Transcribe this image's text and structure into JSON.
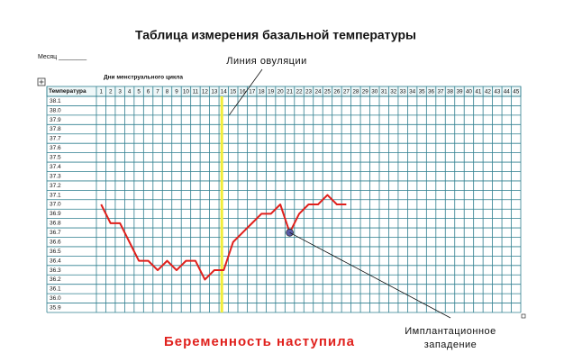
{
  "chart_data": {
    "type": "line",
    "title": "Таблица измерения базальной температуры",
    "month_label": "Месяц ________",
    "x_label": "Дни менструального цикла",
    "header_label": "Температура",
    "categories": [
      1,
      2,
      3,
      4,
      5,
      6,
      7,
      8,
      9,
      10,
      11,
      12,
      13,
      14,
      15,
      16,
      17,
      18,
      19,
      20,
      21,
      22,
      23,
      24,
      25,
      26,
      27,
      28,
      29,
      30,
      31,
      32,
      33,
      34,
      35,
      36,
      37,
      38,
      39,
      40,
      41,
      42,
      43,
      44,
      45
    ],
    "series": [
      {
        "color": "#e0201c",
        "values": [
          37.0,
          36.8,
          36.8,
          36.6,
          36.4,
          36.4,
          36.3,
          36.4,
          36.3,
          36.4,
          36.4,
          36.2,
          36.3,
          36.3,
          36.6,
          36.7,
          36.8,
          36.9,
          36.9,
          37.0,
          36.7,
          36.9,
          37.0,
          37.0,
          37.1,
          37.0,
          37.0,
          null,
          null,
          null,
          null,
          null,
          null,
          null,
          null,
          null,
          null,
          null,
          null,
          null,
          null,
          null,
          null,
          null,
          null
        ]
      }
    ],
    "ylim": [
      35.85,
      38.15
    ],
    "yticks": [
      38.1,
      {
        "value": 38.0,
        "label": "38.0"
      },
      37.9,
      37.8,
      37.7,
      37.6,
      37.5,
      37.4,
      37.3,
      37.2,
      37.1,
      {
        "value": 37.0,
        "label": "37.0"
      },
      36.9,
      36.8,
      36.7,
      36.6,
      36.5,
      36.4,
      36.3,
      36.2,
      36.1,
      {
        "value": 36.0,
        "label": "36.0"
      },
      35.9
    ],
    "ovulation_day": 14,
    "ovulation_color": "#f2ee3a",
    "ovulation_label": "Линия овуляции",
    "implantation_day": 21,
    "implantation_label": [
      "Имплантационное",
      "западение"
    ],
    "note": "Беременность наступила",
    "note_color": "#e0201c"
  }
}
